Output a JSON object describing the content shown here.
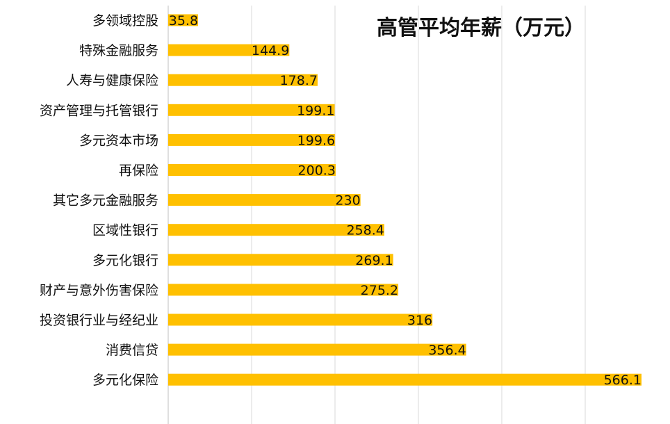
{
  "chart_data": {
    "type": "bar",
    "orientation": "horizontal",
    "title": "高管平均年薪（万元）",
    "xlabel": "",
    "ylabel": "",
    "xlim": [
      0,
      566.1
    ],
    "grid": true,
    "categories": [
      "多领域控股",
      "特殊金融服务",
      "人寿与健康保险",
      "资产管理与托管银行",
      "多元资本市场",
      "再保险",
      "其它多元金融服务",
      "区域性银行",
      "多元化银行",
      "财产与意外伤害保险",
      "投资银行业与经纪业",
      "消费信贷",
      "多元化保险"
    ],
    "values": [
      35.8,
      144.9,
      178.7,
      199.1,
      199.6,
      200.3,
      230,
      258.4,
      269.1,
      275.2,
      316,
      356.4,
      566.1
    ],
    "value_labels": [
      "35.8",
      "144.9",
      "178.7",
      "199.1",
      "199.6",
      "200.3",
      "230",
      "258.4",
      "269.1",
      "275.2",
      "316",
      "356.4",
      "566.1"
    ],
    "bar_color": "#FFC000",
    "grid_color": "#D9D9D9",
    "axis_color": "#BFBFBF"
  }
}
